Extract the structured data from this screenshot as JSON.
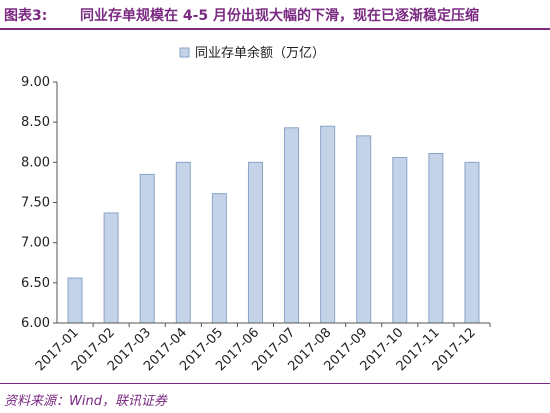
{
  "header": {
    "label": "图表3:",
    "title": "同业存单规模在 4-5 月份出现大幅的下滑，现在已逐渐稳定压缩"
  },
  "source": "资料来源：Wind，联讯证券",
  "chart_data": {
    "type": "bar",
    "title": "",
    "xlabel": "",
    "ylabel": "",
    "categories": [
      "2017-01",
      "2017-02",
      "2017-03",
      "2017-04",
      "2017-05",
      "2017-06",
      "2017-07",
      "2017-08",
      "2017-09",
      "2017-10",
      "2017-11",
      "2017-12"
    ],
    "series": [
      {
        "name": "同业存单余额（万亿）",
        "values": [
          6.56,
          7.37,
          7.85,
          8.0,
          7.61,
          8.0,
          8.43,
          8.45,
          8.33,
          8.06,
          8.11,
          8.0
        ]
      }
    ],
    "ylim": [
      6.0,
      9.0
    ],
    "yticks": [
      "6.00",
      "6.50",
      "7.00",
      "7.50",
      "8.00",
      "8.50",
      "9.00"
    ],
    "grid": false,
    "legend_position": "top-left",
    "colors": {
      "bar_fill": "#c4d3e8",
      "bar_stroke": "#8aa4c8",
      "axis": "#555555"
    }
  }
}
